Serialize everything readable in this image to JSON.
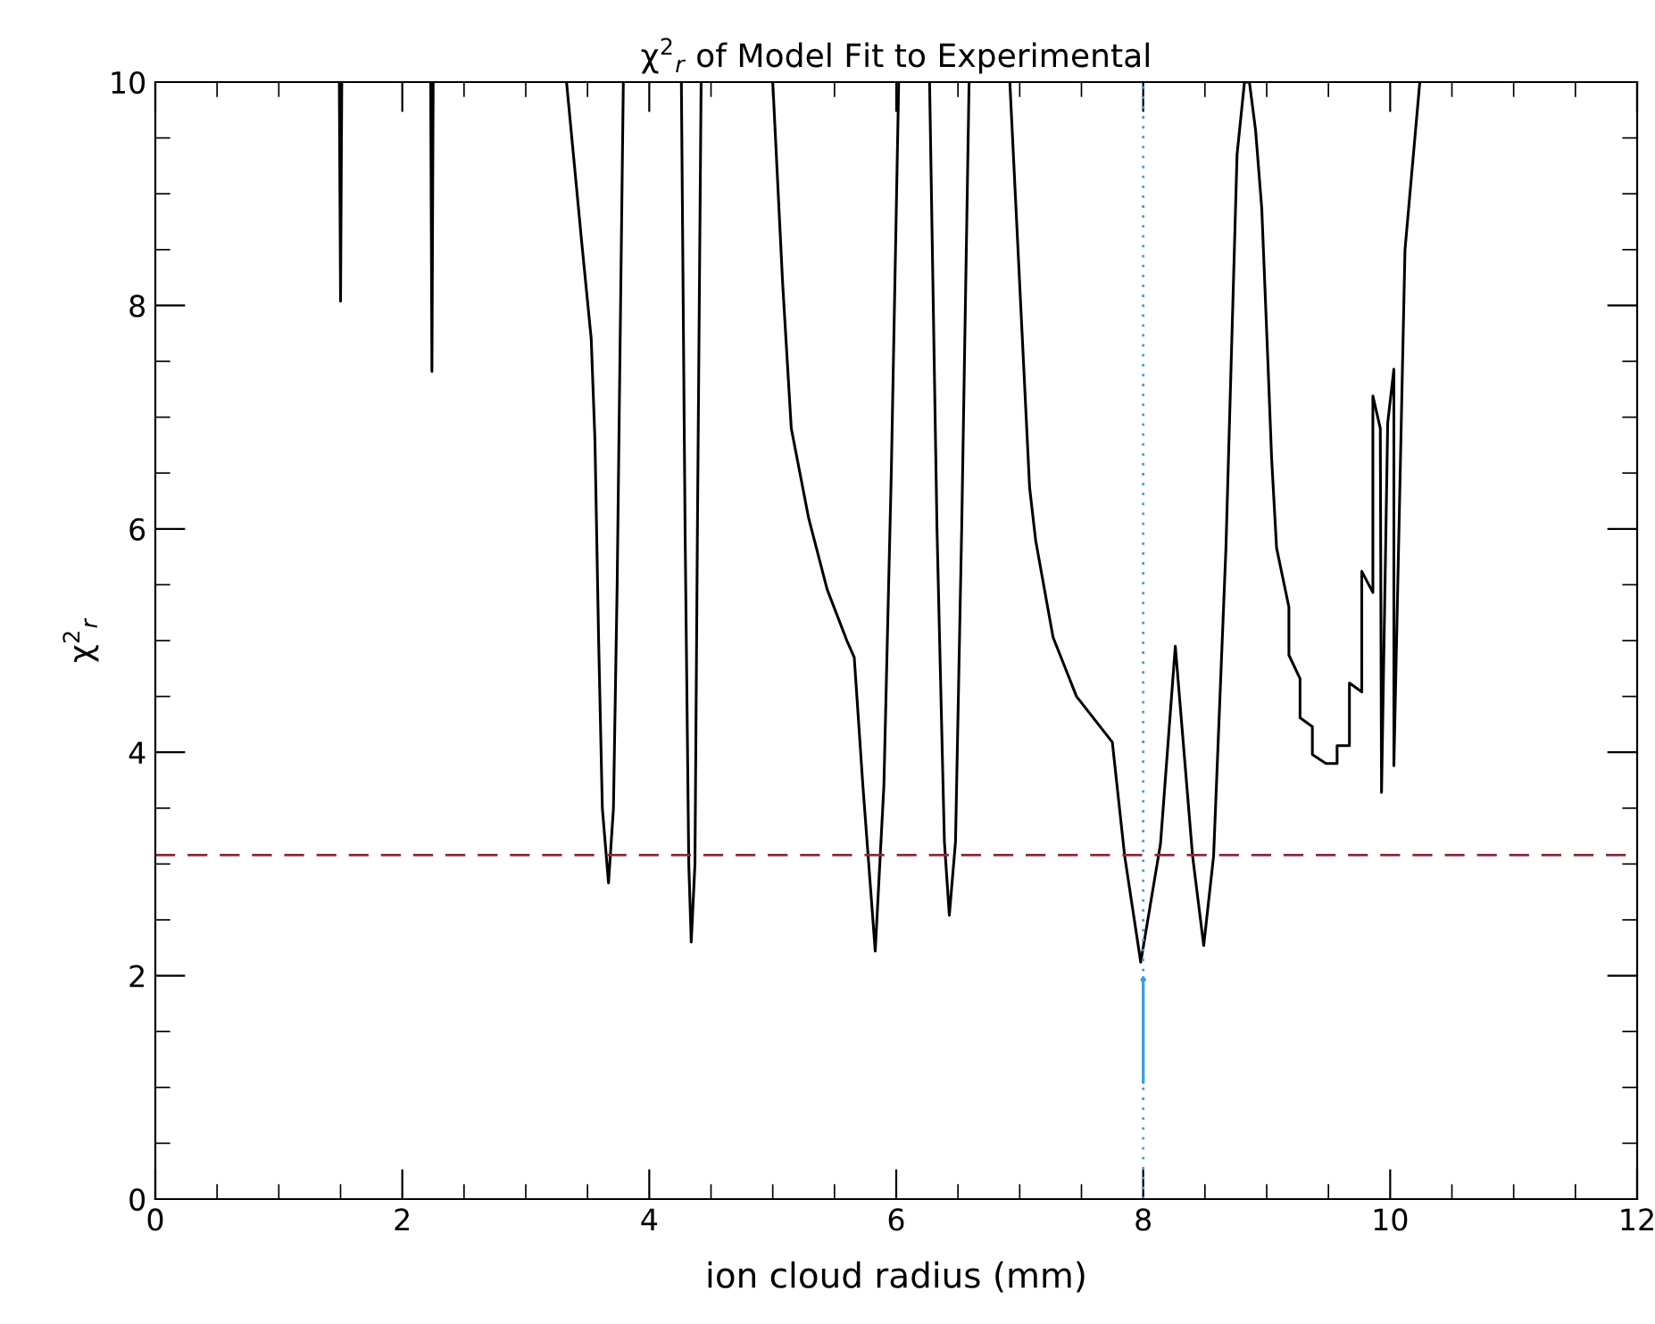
{
  "chart_data": {
    "type": "line",
    "title": "χ$^{2}$$_{r}$ of Model Fit to Experimental",
    "xlabel": "ion cloud radius (mm)",
    "ylabel": "χ$^{2}$$_{r}$",
    "xlim": [
      0,
      12
    ],
    "ylim": [
      0,
      10
    ],
    "xticks": [
      0,
      2,
      4,
      6,
      8,
      10,
      12
    ],
    "yticks": [
      0,
      2,
      4,
      6,
      8,
      10
    ],
    "grid": false,
    "legend": false,
    "marker": "none",
    "line_style": "solid",
    "series": [
      {
        "color": "#000000",
        "x": [
          1.49,
          1.5,
          1.51,
          1.515,
          2.23,
          2.24,
          2.25,
          2.255,
          3.33,
          3.45,
          3.53,
          3.56,
          3.59,
          3.62,
          3.67,
          3.71,
          3.74,
          3.79,
          3.8,
          4.26,
          4.29,
          4.32,
          4.34,
          4.37,
          4.39,
          4.42,
          4.43,
          5.0,
          5.08,
          5.15,
          5.29,
          5.44,
          5.6,
          5.66,
          5.73,
          5.83,
          5.9,
          5.96,
          6.02,
          6.03,
          6.27,
          6.33,
          6.39,
          6.43,
          6.48,
          6.53,
          6.59,
          6.6,
          6.92,
          7.08,
          7.13,
          7.27,
          7.46,
          7.75,
          7.85,
          7.98,
          8.14,
          8.26,
          8.4,
          8.49,
          8.57,
          8.67,
          8.76,
          8.82,
          8.86,
          8.91,
          8.96,
          9.01,
          9.04,
          9.08,
          9.18,
          9.18,
          9.27,
          9.27,
          9.37,
          9.37,
          9.48,
          9.57,
          9.57,
          9.67,
          9.67,
          9.77,
          9.77,
          9.86,
          9.86,
          9.92,
          9.93,
          9.98,
          10.03,
          10.03,
          10.12,
          10.24
        ],
        "values": [
          10,
          8.04,
          10,
          null,
          10,
          7.41,
          10,
          null,
          10,
          8.6,
          7.7,
          6.8,
          5.0,
          3.5,
          2.83,
          3.5,
          5.5,
          10,
          null,
          10,
          6.0,
          3.0,
          2.3,
          3.0,
          6.0,
          10,
          null,
          10,
          8.2,
          6.9,
          6.1,
          5.46,
          5.0,
          4.85,
          3.7,
          2.22,
          3.7,
          6.5,
          10,
          null,
          10,
          6.0,
          3.2,
          2.54,
          3.2,
          6.0,
          10,
          null,
          10,
          6.37,
          5.89,
          5.03,
          4.5,
          4.09,
          3.07,
          2.12,
          3.18,
          4.95,
          3.07,
          2.27,
          3.07,
          5.83,
          9.35,
          10,
          10,
          9.57,
          8.87,
          7.49,
          6.63,
          5.83,
          5.3,
          4.87,
          4.66,
          4.31,
          4.23,
          3.98,
          3.9,
          3.9,
          4.06,
          4.06,
          4.62,
          4.54,
          5.62,
          5.43,
          7.19,
          6.9,
          3.64,
          6.95,
          7.43,
          3.88,
          8.5,
          10
        ]
      }
    ],
    "ref_lines": [
      {
        "axis": "y",
        "value": 3.08,
        "color": "#8b2a3a",
        "line_style": "dashed"
      },
      {
        "axis": "x",
        "value": 8,
        "color": "#3aa0e0",
        "line_style": "dotted"
      }
    ]
  }
}
